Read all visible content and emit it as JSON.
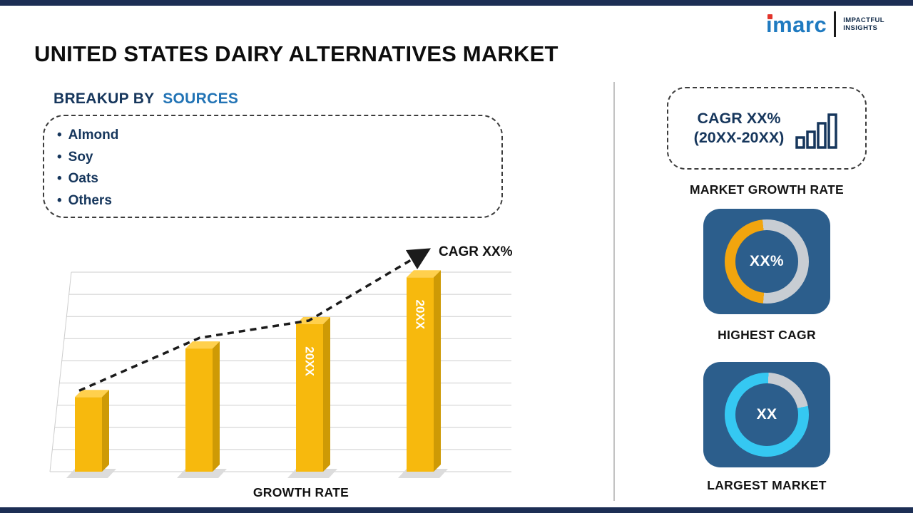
{
  "page": {
    "background": "#ffffff",
    "frame_color": "#1C2E54"
  },
  "header": {
    "title": "UNITED STATES DAIRY ALTERNATIVES MARKET",
    "logo": {
      "text": "imarc",
      "tagline1": "IMPACTFUL",
      "tagline2": "INSIGHTS"
    }
  },
  "breakup": {
    "heading_prefix": "BREAKUP BY",
    "heading_highlight": "SOURCES",
    "bullet": "•",
    "items": [
      "Almond",
      "Soy",
      "Oats",
      "Others"
    ]
  },
  "chart_data": {
    "type": "bar",
    "categories": [
      "",
      "",
      "20XX",
      "20XX"
    ],
    "values": [
      43,
      71,
      85,
      112
    ],
    "ylim": [
      0,
      115
    ],
    "bar_labels": [
      "",
      "",
      "20XX",
      "20XX"
    ],
    "trend_label": "CAGR XX%",
    "xlabel": "GROWTH RATE",
    "bar_color": "#F7B90D",
    "bar_side_color": "#CE9A05",
    "bar_top_color": "#FFD04D",
    "trend_style": "dashed-arrow",
    "grid": true,
    "legend": "none"
  },
  "right_panel": {
    "cagr_box": {
      "line1": "CAGR XX%",
      "line2": "(20XX-20XX)"
    },
    "market_growth_caption": "MARKET GROWTH RATE",
    "highest_cagr": {
      "center_text": "XX%",
      "caption": "HIGHEST CAGR",
      "segment_pct": 47,
      "segment_color": "#F2A50E",
      "track_color": "#C8CDD3",
      "start_deg": 185
    },
    "largest_market": {
      "center_text": "XX",
      "caption": "LARGEST MARKET",
      "segment_pct": 79,
      "segment_color": "#35C8F2",
      "track_color": "#C8CDD3",
      "start_deg": 78
    }
  },
  "colors": {
    "navy_text": "#16365C",
    "accent_blue": "#2173B5",
    "panel_blue": "#2C5E8C",
    "logo_blue": "#1F7AC0",
    "logo_red": "#E2342B",
    "bar_gold": "#F7B90D"
  }
}
